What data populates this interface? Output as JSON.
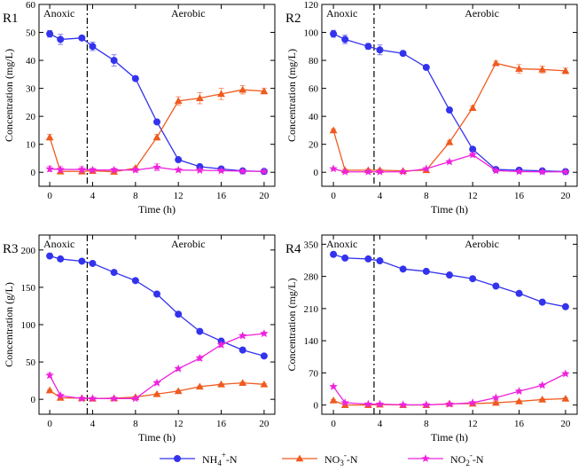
{
  "legend": [
    {
      "key": "nh4",
      "label": "NH4+-N",
      "base": "NH",
      "sub": "4",
      "sup": "+",
      "tail": "-N",
      "color": "#3333ee",
      "marker": "circle"
    },
    {
      "key": "no3",
      "label": "NO3--N",
      "base": "NO",
      "sub": "3",
      "sup": "-",
      "tail": "-N",
      "color": "#f05a1e",
      "marker": "triangle"
    },
    {
      "key": "no2",
      "label": "NO2--N",
      "base": "NO",
      "sub": "2",
      "sup": "-",
      "tail": "-N",
      "color": "#ee22dd",
      "marker": "star"
    }
  ],
  "chart_data": [
    {
      "type": "line",
      "panel": "R1",
      "title": "R1",
      "xlabel": "Time (h)",
      "ylabel": "Concentration (mg/L)",
      "xlim": [
        -1,
        21
      ],
      "ylim": [
        -5,
        60
      ],
      "xticks": [
        0,
        4,
        8,
        12,
        16,
        20
      ],
      "yticks": [
        0,
        10,
        20,
        30,
        40,
        50,
        60
      ],
      "phase_boundary_x": 3.5,
      "phase_labels": [
        "Anoxic",
        "Aerobic"
      ],
      "x": [
        0,
        1,
        3,
        4,
        6,
        8,
        10,
        12,
        14,
        16,
        18,
        20
      ],
      "series": [
        {
          "key": "nh4",
          "name": "NH4+-N",
          "values": [
            49.5,
            47.5,
            48,
            45,
            40,
            33.5,
            18,
            4.5,
            2,
            1.2,
            0.5,
            0.3
          ],
          "errors": [
            1.2,
            1.8,
            0.8,
            1.5,
            2,
            0.8,
            0.5,
            0.5,
            0.5,
            0.3,
            0.3,
            0.3
          ]
        },
        {
          "key": "no3",
          "name": "NO3--N",
          "values": [
            12.5,
            0.3,
            0.3,
            0.5,
            0.2,
            1.5,
            12.5,
            25.5,
            26.5,
            28,
            29.5,
            29
          ],
          "errors": [
            1,
            0.5,
            0.5,
            0.5,
            0.5,
            0.5,
            1,
            1.5,
            2,
            2,
            1.5,
            1
          ]
        },
        {
          "key": "no2",
          "name": "NO2--N",
          "values": [
            1.2,
            1,
            1,
            0.8,
            0.8,
            0.8,
            1.8,
            0.8,
            0.7,
            0.6,
            0.4,
            0.3
          ],
          "errors": [
            1,
            1,
            1,
            0.7,
            0.7,
            0.7,
            1.2,
            0.6,
            0.5,
            0.5,
            0.4,
            0.3
          ]
        }
      ]
    },
    {
      "type": "line",
      "panel": "R2",
      "title": "R2",
      "xlabel": "Time (h)",
      "ylabel": "Concentration (mg/L)",
      "xlim": [
        -1,
        21
      ],
      "ylim": [
        -10,
        120
      ],
      "xticks": [
        0,
        4,
        8,
        12,
        16,
        20
      ],
      "yticks": [
        0,
        20,
        40,
        60,
        80,
        100,
        120
      ],
      "phase_boundary_x": 3.5,
      "phase_labels": [
        "Anoxic",
        "Aerobic"
      ],
      "x": [
        0,
        1,
        3,
        4,
        6,
        8,
        10,
        12,
        14,
        16,
        18,
        20
      ],
      "series": [
        {
          "key": "nh4",
          "name": "NH4+-N",
          "values": [
            99,
            95,
            90,
            87.5,
            85,
            75,
            44.5,
            16.5,
            2,
            1.5,
            1,
            0.5
          ],
          "errors": [
            2.5,
            3,
            2,
            3.5,
            1.5,
            1.5,
            1.5,
            1,
            0.8,
            0.8,
            0.5,
            0.5
          ]
        },
        {
          "key": "no3",
          "name": "NO3--N",
          "values": [
            30,
            1.5,
            1.5,
            1.5,
            1,
            1.5,
            21.5,
            46,
            78,
            74,
            73.5,
            72.5
          ],
          "errors": [
            1,
            0.8,
            0.8,
            0.8,
            0.5,
            0.8,
            1,
            1.5,
            1.5,
            3,
            2.5,
            2
          ]
        },
        {
          "key": "no2",
          "name": "NO2--N",
          "values": [
            2.5,
            0.3,
            0.3,
            0.3,
            0.3,
            2.5,
            7.5,
            12.5,
            1.2,
            0.5,
            0.3,
            0.3
          ],
          "errors": [
            0.8,
            0.4,
            0.4,
            0.4,
            0.4,
            0.8,
            1,
            1.5,
            0.8,
            0.4,
            0.3,
            0.3
          ]
        }
      ]
    },
    {
      "type": "line",
      "panel": "R3",
      "title": "R3",
      "xlabel": "Time (h)",
      "ylabel": "Concentration (g/L)",
      "xlim": [
        -1,
        21
      ],
      "ylim": [
        -20,
        220
      ],
      "xticks": [
        0,
        4,
        8,
        12,
        16,
        20
      ],
      "yticks": [
        0,
        50,
        100,
        150,
        200
      ],
      "phase_boundary_x": 3.5,
      "phase_labels": [
        "Anoxic",
        "Aerobic"
      ],
      "x": [
        0,
        1,
        3,
        4,
        6,
        8,
        10,
        12,
        14,
        16,
        18,
        20
      ],
      "series": [
        {
          "key": "nh4",
          "name": "NH4+-N",
          "values": [
            192,
            188,
            185,
            182,
            170,
            159,
            141,
            114,
            91,
            78,
            66,
            58
          ],
          "errors": [
            3,
            2,
            2,
            2,
            2,
            2,
            2,
            3,
            2,
            2,
            2,
            2
          ]
        },
        {
          "key": "no3",
          "name": "NO3--N",
          "values": [
            12,
            2,
            1.5,
            1,
            1.5,
            3,
            7,
            11,
            17,
            20,
            22,
            20
          ],
          "errors": [
            1,
            1,
            1,
            1,
            1,
            1,
            1,
            1,
            1,
            1,
            1,
            1
          ]
        },
        {
          "key": "no2",
          "name": "NO2--N",
          "values": [
            32,
            5,
            1,
            1,
            1,
            1,
            22,
            41,
            55,
            73,
            85,
            88
          ],
          "errors": [
            3,
            1,
            1,
            1,
            1,
            1,
            2,
            2,
            3,
            3,
            2,
            2
          ]
        }
      ]
    },
    {
      "type": "line",
      "panel": "R4",
      "title": "R4",
      "xlabel": "Time (h)",
      "ylabel": "Concentration (mg/L)",
      "xlim": [
        -1,
        21
      ],
      "ylim": [
        -20,
        370
      ],
      "xticks": [
        0,
        4,
        8,
        12,
        16,
        20
      ],
      "yticks": [
        0,
        70,
        140,
        210,
        280,
        350
      ],
      "phase_boundary_x": 3.5,
      "phase_labels": [
        "Anoxic",
        "Aerobic"
      ],
      "x": [
        0,
        1,
        3,
        4,
        6,
        8,
        10,
        12,
        14,
        16,
        18,
        20
      ],
      "series": [
        {
          "key": "nh4",
          "name": "NH4+-N",
          "values": [
            328,
            320,
            318,
            314,
            296,
            291,
            283,
            275,
            259,
            243,
            224,
            214
          ],
          "errors": [
            4,
            3,
            3,
            3,
            3,
            3,
            3,
            3,
            3,
            3,
            3,
            3
          ]
        },
        {
          "key": "no3",
          "name": "NO3--N",
          "values": [
            10,
            0,
            0,
            1,
            0,
            0,
            3,
            3,
            5,
            8,
            12,
            14
          ],
          "errors": [
            2,
            2,
            2,
            2,
            2,
            2,
            2,
            2,
            2,
            2,
            2,
            2
          ]
        },
        {
          "key": "no2",
          "name": "NO2--N",
          "values": [
            40,
            5,
            2,
            2,
            0.5,
            0.5,
            2,
            5,
            16,
            30,
            43,
            68
          ],
          "errors": [
            3,
            2,
            2,
            2,
            2,
            2,
            2,
            2,
            2,
            3,
            3,
            3
          ]
        }
      ]
    }
  ]
}
